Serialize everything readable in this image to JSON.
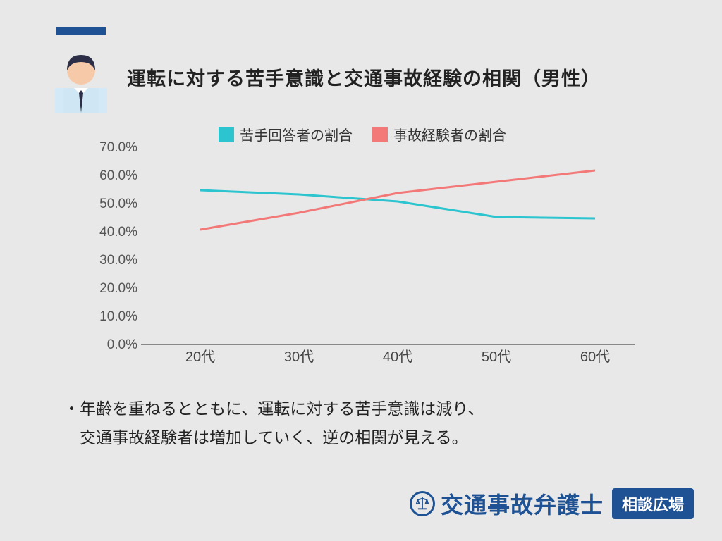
{
  "accent_color": "#1e5294",
  "title": "運転に対する苦手意識と交通事故経験の相関（男性）",
  "legend": {
    "series1": {
      "label": "苦手回答者の割合",
      "color": "#2bc4cf"
    },
    "series2": {
      "label": "事故経験者の割合",
      "color": "#f37878"
    }
  },
  "chart": {
    "type": "line",
    "categories": [
      "20代",
      "30代",
      "40代",
      "50代",
      "60代"
    ],
    "series1_values": [
      55,
      53.5,
      51,
      45.5,
      45
    ],
    "series2_values": [
      41,
      47,
      54,
      58,
      62
    ],
    "ylim": [
      0,
      70
    ],
    "ytick_step": 10,
    "ytick_suffix": "%",
    "ytick_decimal": 1,
    "line_width": 3,
    "background": "#e8e8e8",
    "axis_color": "#888",
    "tick_fontsize": 19,
    "x_positions_pct": [
      12,
      32,
      52,
      72,
      92
    ]
  },
  "notes": {
    "line1": "・年齢を重ねるとともに、運転に対する苦手意識は減り、",
    "line2": "　交通事故経験者は増加していく、逆の相関が見える。"
  },
  "footer": {
    "brand": "交通事故弁護士",
    "badge": "相談広場"
  },
  "avatar_colors": {
    "bg": "#d4e9f7",
    "hair": "#2c2e47",
    "face": "#f6c9a8",
    "shirt": "#cfe7f5",
    "tie": "#2c2e47",
    "collar": "#ffffff"
  }
}
